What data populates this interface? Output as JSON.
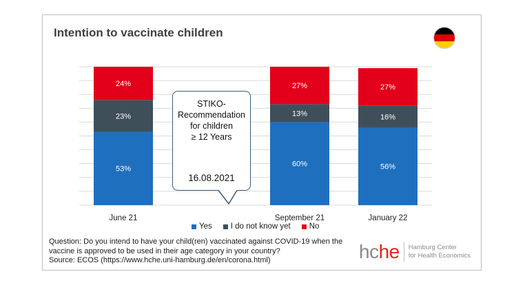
{
  "header": {
    "title": "Intention to vaccinate children"
  },
  "flag": {
    "colors": [
      "#000000",
      "#dd0000",
      "#ffce00"
    ]
  },
  "chart_data": {
    "type": "bar",
    "stacked": true,
    "title": "Intention to vaccinate children",
    "categories": [
      "June 21",
      "",
      "September 21",
      "January 22"
    ],
    "ylim": [
      0,
      100
    ],
    "grid": true,
    "series": [
      {
        "name": "Yes",
        "color": "#1f6fbf",
        "values": [
          53,
          null,
          60,
          56
        ],
        "labels": [
          "53%",
          "",
          "60%",
          "56%"
        ]
      },
      {
        "name": "I do not know yet",
        "color": "#3f4f59",
        "values": [
          23,
          null,
          13,
          16
        ],
        "labels": [
          "23%",
          "",
          "13%",
          "16%"
        ]
      },
      {
        "name": "No",
        "color": "#e2001a",
        "values": [
          24,
          null,
          27,
          27
        ],
        "labels": [
          "24%",
          "",
          "27%",
          "27%"
        ]
      }
    ]
  },
  "callout": {
    "text": "STIKO-\nRecommendation\nfor children\n≥ 12 Years",
    "date": "16.08.2021"
  },
  "footer": {
    "question": "Question: Do you intend to have your child(ren) vaccinated against COVID-19 when the vaccine is approved to be used in their age category in your country?",
    "source": "Source: ECOS (https://www.hche.uni-hamburg.de/en/corona.html)"
  },
  "logo": {
    "mark_left": "hc",
    "mark_right": "he",
    "line1": "Hamburg Center",
    "line2": "for Health Economics"
  }
}
